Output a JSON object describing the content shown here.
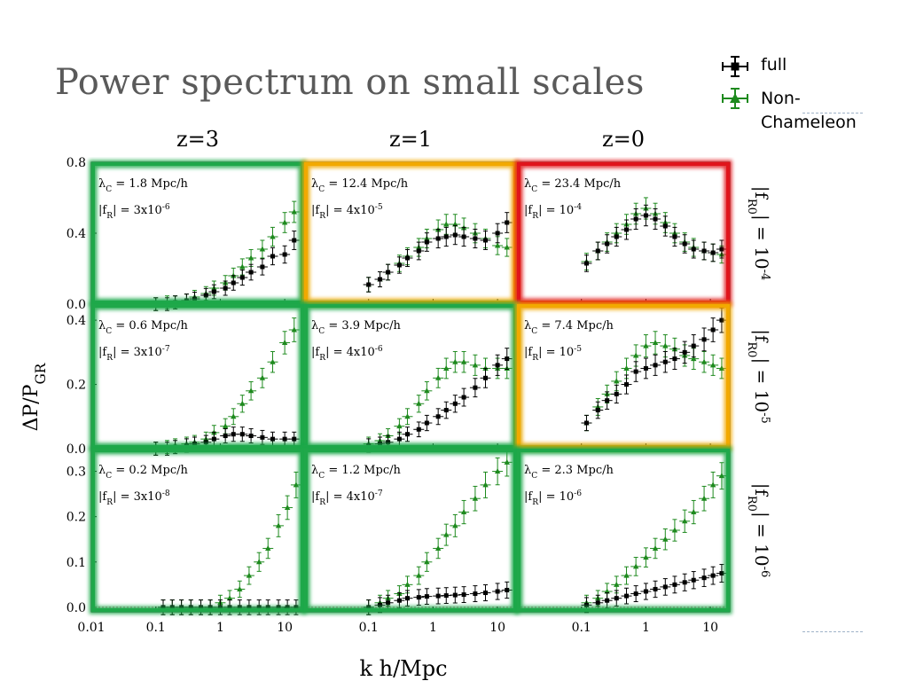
{
  "slide": {
    "title": "Power spectrum on small scales"
  },
  "legend": {
    "full_label": "full",
    "non_chameleon_label": "Non-\nChameleon"
  },
  "colors": {
    "full": "#000000",
    "non_chameleon": "#1e8a1e",
    "highlight_green": "#1fa84a",
    "highlight_orange": "#f2a900",
    "highlight_red": "#e0141c",
    "zero_line": "#c2185b"
  },
  "chart_data": {
    "type": "scatter",
    "xlabel": "k h/Mpc",
    "ylabel": "ΔP/P_GR",
    "x_scale": "log",
    "x_ticks": [
      "0.01",
      "0.1",
      "1",
      "10"
    ],
    "columns": [
      {
        "label": "z=3"
      },
      {
        "label": "z=1"
      },
      {
        "label": "z=0"
      }
    ],
    "rows": [
      {
        "label": "|f_R0| = 10^-4",
        "ylim": [
          0,
          0.8
        ],
        "yticks": [
          "0.0",
          "0.4",
          "0.8"
        ]
      },
      {
        "label": "|f_R0| = 10^-5",
        "ylim": [
          0,
          0.45
        ],
        "yticks": [
          "0.0",
          "0.2",
          "0.4"
        ]
      },
      {
        "label": "|f_R0| = 10^-6",
        "ylim": [
          -0.01,
          0.35
        ],
        "yticks": [
          "0.0",
          "0.1",
          "0.2",
          "0.3"
        ]
      }
    ],
    "series": [
      {
        "name": "full",
        "color": "#000000",
        "marker": "square"
      },
      {
        "name": "Non-Chameleon",
        "color": "#1e8a1e",
        "marker": "triangle"
      }
    ],
    "panels": [
      {
        "row": 0,
        "col": 0,
        "lambda": "1.8 Mpc/h",
        "fR": "3x10^-6",
        "highlight": "green",
        "full": [
          [
            0.1,
            0.0
          ],
          [
            0.15,
            0.0
          ],
          [
            0.2,
            0.01
          ],
          [
            0.3,
            0.02
          ],
          [
            0.4,
            0.03
          ],
          [
            0.6,
            0.05
          ],
          [
            0.8,
            0.07
          ],
          [
            1.2,
            0.09
          ],
          [
            1.6,
            0.12
          ],
          [
            2.2,
            0.15
          ],
          [
            3.0,
            0.18
          ],
          [
            4.5,
            0.21
          ],
          [
            6.5,
            0.27
          ],
          [
            10,
            0.28
          ],
          [
            14,
            0.36
          ]
        ],
        "nc": [
          [
            0.1,
            0.0
          ],
          [
            0.15,
            0.01
          ],
          [
            0.2,
            0.01
          ],
          [
            0.3,
            0.02
          ],
          [
            0.4,
            0.04
          ],
          [
            0.6,
            0.06
          ],
          [
            0.8,
            0.09
          ],
          [
            1.2,
            0.12
          ],
          [
            1.6,
            0.16
          ],
          [
            2.2,
            0.21
          ],
          [
            3.0,
            0.26
          ],
          [
            4.5,
            0.31
          ],
          [
            6.5,
            0.38
          ],
          [
            10,
            0.46
          ],
          [
            14,
            0.52
          ]
        ]
      },
      {
        "row": 0,
        "col": 1,
        "lambda": "12.4 Mpc/h",
        "fR": "4x10^-5",
        "highlight": "orange",
        "full": [
          [
            0.1,
            0.11
          ],
          [
            0.15,
            0.14
          ],
          [
            0.2,
            0.18
          ],
          [
            0.3,
            0.22
          ],
          [
            0.4,
            0.26
          ],
          [
            0.6,
            0.3
          ],
          [
            0.8,
            0.35
          ],
          [
            1.2,
            0.37
          ],
          [
            1.6,
            0.38
          ],
          [
            2.2,
            0.39
          ],
          [
            3.0,
            0.38
          ],
          [
            4.5,
            0.37
          ],
          [
            6.5,
            0.36
          ],
          [
            10,
            0.4
          ],
          [
            14,
            0.46
          ]
        ],
        "nc": [
          [
            0.1,
            0.11
          ],
          [
            0.15,
            0.14
          ],
          [
            0.2,
            0.18
          ],
          [
            0.3,
            0.23
          ],
          [
            0.4,
            0.27
          ],
          [
            0.6,
            0.32
          ],
          [
            0.8,
            0.37
          ],
          [
            1.2,
            0.42
          ],
          [
            1.6,
            0.45
          ],
          [
            2.2,
            0.45
          ],
          [
            3.0,
            0.43
          ],
          [
            4.5,
            0.4
          ],
          [
            6.5,
            0.37
          ],
          [
            10,
            0.33
          ],
          [
            14,
            0.32
          ]
        ]
      },
      {
        "row": 0,
        "col": 2,
        "lambda": "23.4 Mpc/h",
        "fR": "10^-4",
        "highlight": "red",
        "full": [
          [
            0.12,
            0.23
          ],
          [
            0.18,
            0.3
          ],
          [
            0.25,
            0.34
          ],
          [
            0.35,
            0.38
          ],
          [
            0.5,
            0.42
          ],
          [
            0.7,
            0.48
          ],
          [
            1.0,
            0.5
          ],
          [
            1.4,
            0.48
          ],
          [
            2.0,
            0.44
          ],
          [
            2.8,
            0.38
          ],
          [
            4.0,
            0.34
          ],
          [
            5.5,
            0.31
          ],
          [
            8.0,
            0.3
          ],
          [
            11,
            0.29
          ],
          [
            15,
            0.31
          ]
        ],
        "nc": [
          [
            0.12,
            0.24
          ],
          [
            0.18,
            0.3
          ],
          [
            0.25,
            0.35
          ],
          [
            0.35,
            0.4
          ],
          [
            0.5,
            0.45
          ],
          [
            0.7,
            0.51
          ],
          [
            1.0,
            0.54
          ],
          [
            1.4,
            0.51
          ],
          [
            2.0,
            0.46
          ],
          [
            2.8,
            0.4
          ],
          [
            4.0,
            0.35
          ],
          [
            5.5,
            0.32
          ],
          [
            8.0,
            0.3
          ],
          [
            11,
            0.29
          ],
          [
            15,
            0.28
          ]
        ]
      },
      {
        "row": 1,
        "col": 0,
        "lambda": "0.6 Mpc/h",
        "fR": "3x10^-7",
        "highlight": "green",
        "full": [
          [
            0.1,
            0.0
          ],
          [
            0.15,
            0.0
          ],
          [
            0.2,
            0.005
          ],
          [
            0.3,
            0.01
          ],
          [
            0.4,
            0.015
          ],
          [
            0.6,
            0.02
          ],
          [
            0.8,
            0.03
          ],
          [
            1.2,
            0.04
          ],
          [
            1.6,
            0.045
          ],
          [
            2.2,
            0.045
          ],
          [
            3.0,
            0.04
          ],
          [
            4.5,
            0.035
          ],
          [
            6.5,
            0.03
          ],
          [
            10,
            0.03
          ],
          [
            14,
            0.03
          ]
        ],
        "nc": [
          [
            0.1,
            0.0
          ],
          [
            0.15,
            0.005
          ],
          [
            0.2,
            0.01
          ],
          [
            0.3,
            0.015
          ],
          [
            0.4,
            0.02
          ],
          [
            0.6,
            0.03
          ],
          [
            0.8,
            0.05
          ],
          [
            1.2,
            0.07
          ],
          [
            1.6,
            0.1
          ],
          [
            2.2,
            0.14
          ],
          [
            3.0,
            0.18
          ],
          [
            4.5,
            0.22
          ],
          [
            6.5,
            0.27
          ],
          [
            10,
            0.33
          ],
          [
            14,
            0.37
          ]
        ]
      },
      {
        "row": 1,
        "col": 1,
        "lambda": "3.9 Mpc/h",
        "fR": "4x10^-6",
        "highlight": "green",
        "full": [
          [
            0.1,
            0.01
          ],
          [
            0.15,
            0.015
          ],
          [
            0.2,
            0.02
          ],
          [
            0.3,
            0.03
          ],
          [
            0.4,
            0.045
          ],
          [
            0.6,
            0.06
          ],
          [
            0.8,
            0.08
          ],
          [
            1.2,
            0.1
          ],
          [
            1.6,
            0.12
          ],
          [
            2.2,
            0.14
          ],
          [
            3.0,
            0.16
          ],
          [
            4.5,
            0.19
          ],
          [
            6.5,
            0.22
          ],
          [
            10,
            0.26
          ],
          [
            14,
            0.28
          ]
        ],
        "nc": [
          [
            0.1,
            0.015
          ],
          [
            0.15,
            0.025
          ],
          [
            0.2,
            0.04
          ],
          [
            0.3,
            0.07
          ],
          [
            0.4,
            0.1
          ],
          [
            0.6,
            0.14
          ],
          [
            0.8,
            0.18
          ],
          [
            1.2,
            0.22
          ],
          [
            1.6,
            0.25
          ],
          [
            2.2,
            0.27
          ],
          [
            3.0,
            0.27
          ],
          [
            4.5,
            0.26
          ],
          [
            6.5,
            0.25
          ],
          [
            10,
            0.25
          ],
          [
            14,
            0.25
          ]
        ]
      },
      {
        "row": 1,
        "col": 2,
        "lambda": "7.4 Mpc/h",
        "fR": "10^-5",
        "highlight": "orange",
        "full": [
          [
            0.12,
            0.08
          ],
          [
            0.18,
            0.12
          ],
          [
            0.25,
            0.15
          ],
          [
            0.35,
            0.17
          ],
          [
            0.5,
            0.2
          ],
          [
            0.7,
            0.24
          ],
          [
            1.0,
            0.25
          ],
          [
            1.4,
            0.26
          ],
          [
            2.0,
            0.27
          ],
          [
            2.8,
            0.28
          ],
          [
            4.0,
            0.3
          ],
          [
            5.5,
            0.32
          ],
          [
            8.0,
            0.34
          ],
          [
            11,
            0.37
          ],
          [
            15,
            0.4
          ]
        ],
        "nc": [
          [
            0.12,
            0.08
          ],
          [
            0.18,
            0.13
          ],
          [
            0.25,
            0.17
          ],
          [
            0.35,
            0.21
          ],
          [
            0.5,
            0.25
          ],
          [
            0.7,
            0.29
          ],
          [
            1.0,
            0.32
          ],
          [
            1.4,
            0.33
          ],
          [
            2.0,
            0.32
          ],
          [
            2.8,
            0.31
          ],
          [
            4.0,
            0.29
          ],
          [
            5.5,
            0.28
          ],
          [
            8.0,
            0.27
          ],
          [
            11,
            0.26
          ],
          [
            15,
            0.25
          ]
        ]
      },
      {
        "row": 2,
        "col": 0,
        "lambda": "0.2 Mpc/h",
        "fR": "3x10^-8",
        "highlight": "green",
        "full": [
          [
            0.13,
            0.0
          ],
          [
            0.18,
            0.0
          ],
          [
            0.25,
            0.0
          ],
          [
            0.35,
            0.0
          ],
          [
            0.5,
            0.0
          ],
          [
            0.7,
            0.0
          ],
          [
            1.0,
            0.0
          ],
          [
            1.4,
            0.0
          ],
          [
            2.0,
            0.0
          ],
          [
            2.8,
            0.0
          ],
          [
            4.0,
            0.0
          ],
          [
            5.5,
            0.0
          ],
          [
            8.0,
            0.0
          ],
          [
            11,
            0.0
          ],
          [
            15,
            0.0
          ]
        ],
        "nc": [
          [
            0.13,
            0.0
          ],
          [
            0.18,
            0.0
          ],
          [
            0.25,
            0.0
          ],
          [
            0.35,
            0.0
          ],
          [
            0.5,
            0.0
          ],
          [
            0.7,
            0.0
          ],
          [
            1.0,
            0.01
          ],
          [
            1.4,
            0.02
          ],
          [
            2.0,
            0.04
          ],
          [
            2.8,
            0.07
          ],
          [
            4.0,
            0.1
          ],
          [
            5.5,
            0.13
          ],
          [
            8.0,
            0.18
          ],
          [
            11,
            0.22
          ],
          [
            15,
            0.27
          ]
        ]
      },
      {
        "row": 2,
        "col": 1,
        "lambda": "1.2 Mpc/h",
        "fR": "4x10^-7",
        "highlight": "green",
        "full": [
          [
            0.1,
            0.0
          ],
          [
            0.15,
            0.005
          ],
          [
            0.2,
            0.01
          ],
          [
            0.3,
            0.015
          ],
          [
            0.4,
            0.02
          ],
          [
            0.6,
            0.022
          ],
          [
            0.8,
            0.024
          ],
          [
            1.2,
            0.025
          ],
          [
            1.6,
            0.026
          ],
          [
            2.2,
            0.027
          ],
          [
            3.0,
            0.028
          ],
          [
            4.5,
            0.03
          ],
          [
            6.5,
            0.032
          ],
          [
            10,
            0.035
          ],
          [
            14,
            0.038
          ]
        ],
        "nc": [
          [
            0.1,
            0.0
          ],
          [
            0.15,
            0.01
          ],
          [
            0.2,
            0.02
          ],
          [
            0.3,
            0.03
          ],
          [
            0.4,
            0.05
          ],
          [
            0.6,
            0.07
          ],
          [
            0.8,
            0.1
          ],
          [
            1.2,
            0.13
          ],
          [
            1.6,
            0.16
          ],
          [
            2.2,
            0.18
          ],
          [
            3.0,
            0.21
          ],
          [
            4.5,
            0.24
          ],
          [
            6.5,
            0.27
          ],
          [
            10,
            0.3
          ],
          [
            14,
            0.32
          ]
        ]
      },
      {
        "row": 2,
        "col": 2,
        "lambda": "2.3 Mpc/h",
        "fR": "10^-6",
        "highlight": "green",
        "full": [
          [
            0.12,
            0.005
          ],
          [
            0.18,
            0.01
          ],
          [
            0.25,
            0.015
          ],
          [
            0.35,
            0.02
          ],
          [
            0.5,
            0.025
          ],
          [
            0.7,
            0.03
          ],
          [
            1.0,
            0.035
          ],
          [
            1.4,
            0.04
          ],
          [
            2.0,
            0.045
          ],
          [
            2.8,
            0.05
          ],
          [
            4.0,
            0.055
          ],
          [
            5.5,
            0.06
          ],
          [
            8.0,
            0.065
          ],
          [
            11,
            0.07
          ],
          [
            15,
            0.075
          ]
        ],
        "nc": [
          [
            0.12,
            0.01
          ],
          [
            0.18,
            0.02
          ],
          [
            0.25,
            0.035
          ],
          [
            0.35,
            0.05
          ],
          [
            0.5,
            0.07
          ],
          [
            0.7,
            0.09
          ],
          [
            1.0,
            0.11
          ],
          [
            1.4,
            0.13
          ],
          [
            2.0,
            0.15
          ],
          [
            2.8,
            0.17
          ],
          [
            4.0,
            0.19
          ],
          [
            5.5,
            0.21
          ],
          [
            8.0,
            0.24
          ],
          [
            11,
            0.27
          ],
          [
            15,
            0.29
          ]
        ]
      }
    ]
  }
}
